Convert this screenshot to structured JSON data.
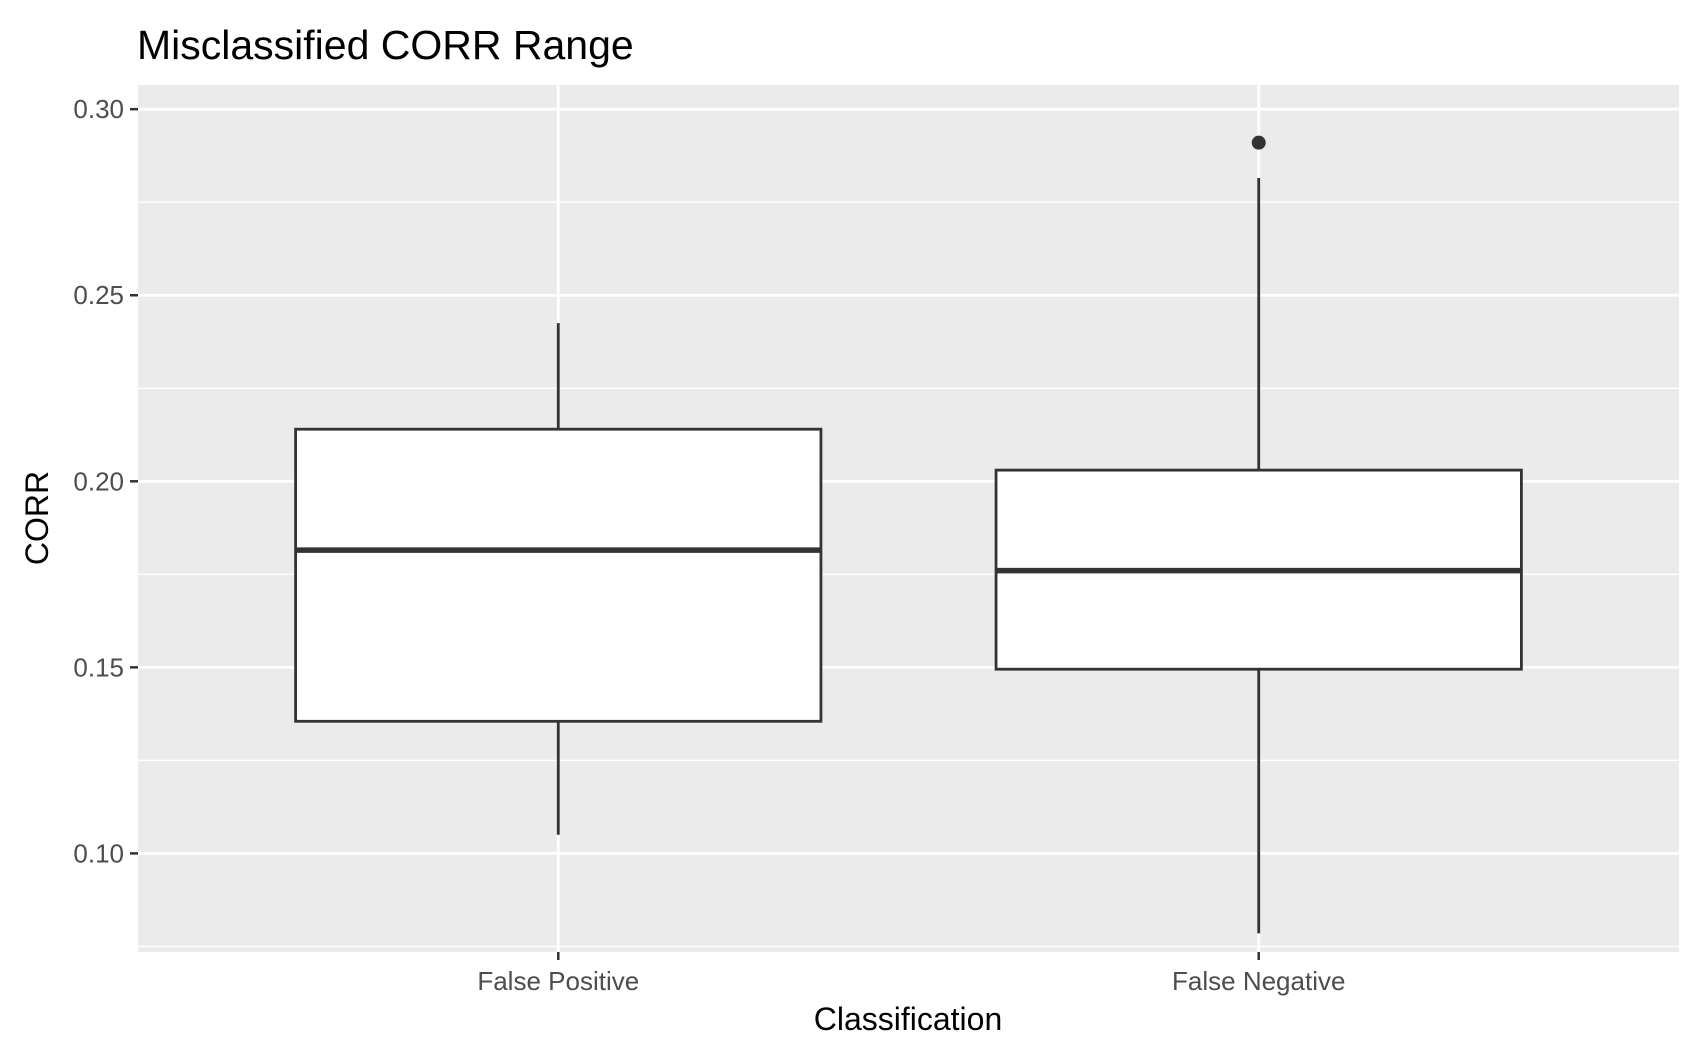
{
  "chart_data": {
    "type": "boxplot",
    "title": "Misclassified CORR Range",
    "xlabel": "Classification",
    "ylabel": "CORR",
    "ylim": [
      0.0735,
      0.3065
    ],
    "yticks": [
      "0.10",
      "0.15",
      "0.20",
      "0.25",
      "0.30"
    ],
    "ytick_values": [
      0.1,
      0.15,
      0.2,
      0.25,
      0.3
    ],
    "grid": true,
    "theme": "ggplot2 grey",
    "categories": [
      "False Positive",
      "False Negative"
    ],
    "boxes": [
      {
        "category": "False Positive",
        "whisker_low": 0.105,
        "q1": 0.1355,
        "median": 0.1815,
        "q3": 0.214,
        "whisker_high": 0.2425,
        "outliers": []
      },
      {
        "category": "False Negative",
        "whisker_low": 0.0785,
        "q1": 0.1495,
        "median": 0.176,
        "q3": 0.203,
        "whisker_high": 0.2815,
        "outliers": [
          0.291
        ]
      }
    ],
    "colors": {
      "panel_background": "#ebebeb",
      "grid_line": "#ffffff",
      "box_fill": "#ffffff",
      "box_line": "#333333",
      "tick_label": "#4d4d4d",
      "tick_mark": "#333333",
      "text": "#000000"
    }
  }
}
